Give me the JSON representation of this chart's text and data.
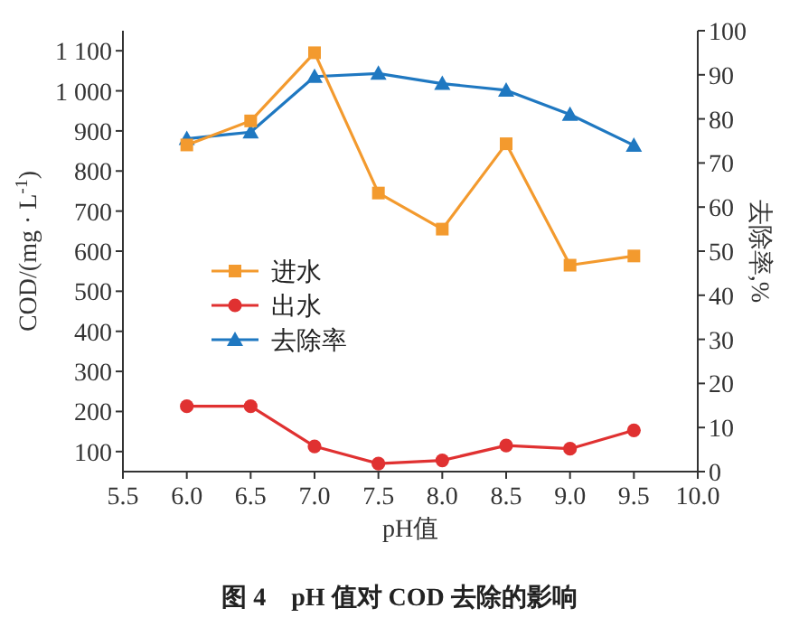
{
  "chart_data": {
    "type": "line",
    "title": "图 4　pH 值对 COD 去除的影响",
    "xlabel": "pH值",
    "ylabel": "COD/(mg · L$^{-1}$)",
    "y2label": "去除率,%",
    "x": [
      6.0,
      6.5,
      7.0,
      7.5,
      8.0,
      8.5,
      9.0,
      9.5
    ],
    "series": [
      {
        "name": "进水",
        "color": "#f39a2e",
        "marker": "square",
        "values": [
          865,
          925,
          1095,
          745,
          655,
          868,
          565,
          588
        ]
      },
      {
        "name": "出水",
        "color": "#e03131",
        "marker": "circle",
        "values": [
          213,
          213,
          113,
          70,
          78,
          115,
          107,
          153
        ]
      },
      {
        "name": "去除率",
        "color": "#1f78c1",
        "marker": "triangle",
        "axis": "y2",
        "values": [
          75.5,
          77,
          89.6,
          90.3,
          88,
          86.5,
          81,
          74
        ]
      }
    ],
    "xlim": [
      5.5,
      10.0
    ],
    "xticks": [
      {
        "value": 5.5,
        "label": "5.5"
      },
      {
        "value": 6,
        "label": "6.0"
      },
      {
        "value": 6.5,
        "label": "6.5"
      },
      {
        "value": 7,
        "label": "7.0"
      },
      {
        "value": 7.5,
        "label": "7.5"
      },
      {
        "value": 8,
        "label": "8.0"
      },
      {
        "value": 8.5,
        "label": "8.5"
      },
      {
        "value": 9,
        "label": "9.0"
      },
      {
        "value": 9.5,
        "label": "9.5"
      },
      {
        "value": 10,
        "label": "10.0"
      }
    ],
    "ylim": [
      50,
      1150
    ],
    "yticks": [
      100,
      200,
      300,
      400,
      500,
      600,
      700,
      800,
      900,
      {
        "value": 1000,
        "label": "1 000"
      },
      {
        "value": 1100,
        "label": "1 100"
      }
    ],
    "y2lim": [
      0,
      100
    ],
    "y2ticks": [
      0,
      10,
      20,
      30,
      40,
      50,
      60,
      70,
      80,
      90,
      100
    ],
    "legend": "left",
    "grid": false,
    "line_style": "solid"
  }
}
